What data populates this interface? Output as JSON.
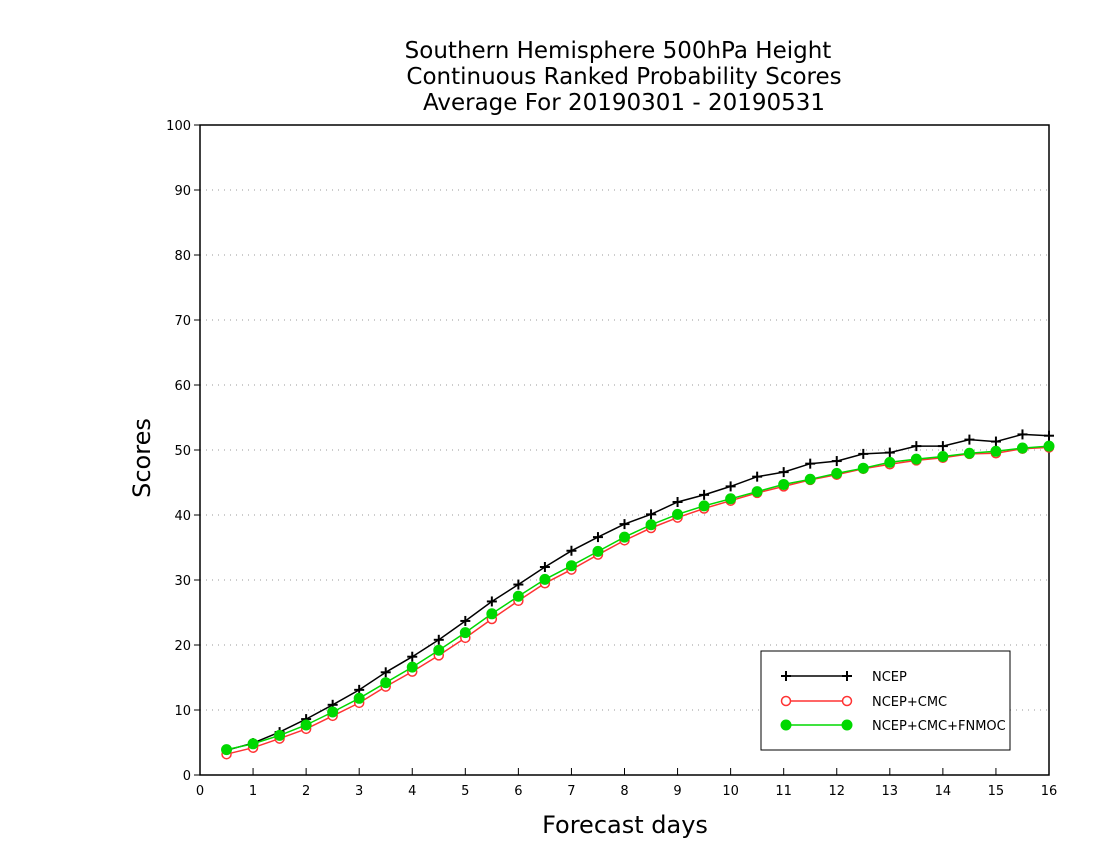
{
  "chart_data": {
    "type": "line",
    "title": [
      "Southern Hemisphere 500hPa Height",
      "Continuous Ranked Probability Scores",
      "Average For 20190301 - 20190531"
    ],
    "xlabel": "Forecast days",
    "ylabel": "Scores",
    "xlim": [
      0,
      16
    ],
    "ylim": [
      0,
      100
    ],
    "xticks": [
      "0",
      "1",
      "2",
      "3",
      "4",
      "5",
      "6",
      "7",
      "8",
      "9",
      "10",
      "11",
      "12",
      "13",
      "14",
      "15",
      "16"
    ],
    "yticks": [
      "0",
      "10",
      "20",
      "30",
      "40",
      "50",
      "60",
      "70",
      "80",
      "90",
      "100"
    ],
    "grid": "horizontal dotted",
    "legend_position": "bottom-right",
    "x": [
      0.5,
      1,
      1.5,
      2,
      2.5,
      3,
      3.5,
      4,
      4.5,
      5,
      5.5,
      6,
      6.5,
      7,
      7.5,
      8,
      8.5,
      9,
      9.5,
      10,
      10.5,
      11,
      11.5,
      12,
      12.5,
      13,
      13.5,
      14,
      14.5,
      15,
      15.5,
      16
    ],
    "series": [
      {
        "name": "NCEP",
        "color": "#000000",
        "marker": "plus",
        "values": [
          3.8,
          4.9,
          6.6,
          8.6,
          10.8,
          13.1,
          15.8,
          18.2,
          20.8,
          23.7,
          26.7,
          29.3,
          32.0,
          34.5,
          36.6,
          38.6,
          40.1,
          42.0,
          43.1,
          44.4,
          45.9,
          46.6,
          47.9,
          48.3,
          49.4,
          49.6,
          50.6,
          50.6,
          51.6,
          51.3,
          52.4,
          52.2
        ]
      },
      {
        "name": "NCEP+CMC",
        "color": "#ff3333",
        "marker": "open-circle",
        "values": [
          3.2,
          4.2,
          5.6,
          7.1,
          9.1,
          11.1,
          13.6,
          15.9,
          18.4,
          21.1,
          24.0,
          26.8,
          29.5,
          31.6,
          33.9,
          36.1,
          38.0,
          39.6,
          41.0,
          42.2,
          43.4,
          44.4,
          45.4,
          46.2,
          47.1,
          47.8,
          48.4,
          48.8,
          49.4,
          49.5,
          50.2,
          50.4
        ]
      },
      {
        "name": "NCEP+CMC+FNMOC",
        "color": "#00d800",
        "marker": "filled-circle",
        "values": [
          3.9,
          4.8,
          6.1,
          7.7,
          9.7,
          11.8,
          14.2,
          16.6,
          19.2,
          21.9,
          24.8,
          27.5,
          30.1,
          32.2,
          34.4,
          36.6,
          38.5,
          40.1,
          41.4,
          42.5,
          43.6,
          44.7,
          45.5,
          46.4,
          47.2,
          48.1,
          48.6,
          49.0,
          49.5,
          49.8,
          50.3,
          50.6
        ]
      }
    ]
  }
}
